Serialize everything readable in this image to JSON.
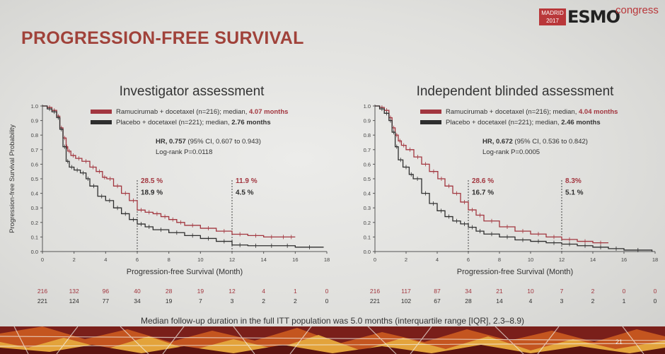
{
  "slide": {
    "title": "PROGRESSION-FREE SURVIVAL",
    "logo": {
      "city": "MADRID",
      "year": "2017",
      "brand": "ESMO",
      "suffix": "congress"
    },
    "footnote": "Median follow-up duration in the full ITT population was 5.0 months (interquartile range [IQR], 2.3–8.9)",
    "page_number": "21"
  },
  "chart_data": [
    {
      "type": "line",
      "title": "Investigator assessment",
      "xlabel": "Progression-free Survival (Month)",
      "ylabel": "Progression-free Survival Probability",
      "xlim": [
        0,
        18
      ],
      "ylim": [
        0,
        1.0
      ],
      "xticks": [
        0,
        2,
        4,
        6,
        8,
        10,
        12,
        14,
        16,
        18
      ],
      "yticks": [
        0.0,
        0.1,
        0.2,
        0.3,
        0.4,
        0.5,
        0.6,
        0.7,
        0.8,
        0.9,
        1.0
      ],
      "grid": false,
      "legend_position": "top-right",
      "series": [
        {
          "name": "Ramucirumab + docetaxel (n=216); median,",
          "median_label": "4.07 months",
          "color": "#a2363f",
          "x": [
            0,
            0.3,
            0.6,
            0.9,
            1.1,
            1.3,
            1.5,
            1.6,
            1.8,
            2.1,
            2.5,
            3.0,
            3.4,
            3.8,
            4.07,
            4.5,
            5.0,
            5.5,
            6.0,
            6.5,
            7.0,
            7.5,
            8.0,
            8.5,
            9.0,
            10.0,
            11.0,
            12.0,
            13.0,
            14.0,
            15.0,
            15.5,
            16.0
          ],
          "y": [
            1.0,
            0.99,
            0.97,
            0.93,
            0.85,
            0.78,
            0.72,
            0.69,
            0.66,
            0.64,
            0.62,
            0.58,
            0.55,
            0.51,
            0.5,
            0.45,
            0.4,
            0.35,
            0.285,
            0.27,
            0.26,
            0.24,
            0.22,
            0.2,
            0.18,
            0.16,
            0.14,
            0.119,
            0.11,
            0.1,
            0.1,
            0.1,
            0.1
          ]
        },
        {
          "name": "Placebo + docetaxel (n=221); median,",
          "median_label": "2.76 months",
          "color": "#2e2e2e",
          "x": [
            0,
            0.3,
            0.6,
            0.9,
            1.1,
            1.3,
            1.5,
            1.7,
            2.0,
            2.4,
            2.76,
            3.0,
            3.5,
            4.0,
            4.5,
            5.0,
            5.5,
            6.0,
            6.5,
            7.0,
            8.0,
            9.0,
            10.0,
            11.0,
            12.0,
            13.0,
            14.0,
            15.0,
            16.0,
            17.8
          ],
          "y": [
            1.0,
            0.98,
            0.96,
            0.92,
            0.84,
            0.72,
            0.62,
            0.58,
            0.56,
            0.54,
            0.5,
            0.45,
            0.38,
            0.35,
            0.3,
            0.26,
            0.22,
            0.189,
            0.17,
            0.15,
            0.13,
            0.11,
            0.09,
            0.07,
            0.045,
            0.04,
            0.04,
            0.04,
            0.03,
            0.03
          ]
        }
      ],
      "stats": {
        "hr_label": "HR, 0.757",
        "hr_ci": "(95% CI, 0.607 to 0.943)",
        "logrank": "Log-rank P=0.0118"
      },
      "annotations": [
        {
          "x": 6,
          "upper": "28.5 %",
          "lower": "18.9 %"
        },
        {
          "x": 12,
          "upper": "11.9 %",
          "lower": "4.5 %"
        }
      ],
      "risk_table": {
        "ramucirumab": [
          "216",
          "132",
          "96",
          "40",
          "28",
          "19",
          "12",
          "4",
          "1",
          "0"
        ],
        "placebo": [
          "221",
          "124",
          "77",
          "34",
          "19",
          "7",
          "3",
          "2",
          "2",
          "0"
        ]
      }
    },
    {
      "type": "line",
      "title": "Independent blinded assessment",
      "xlabel": "Progression-free Survival (Month)",
      "ylabel": "",
      "xlim": [
        0,
        18
      ],
      "ylim": [
        0,
        1.0
      ],
      "xticks": [
        0,
        2,
        4,
        6,
        8,
        10,
        12,
        14,
        16,
        18
      ],
      "yticks": [
        0.0,
        0.1,
        0.2,
        0.3,
        0.4,
        0.5,
        0.6,
        0.7,
        0.8,
        0.9,
        1.0
      ],
      "grid": false,
      "legend_position": "top-right",
      "series": [
        {
          "name": "Ramucirumab + docetaxel (n=216); median,",
          "median_label": "4.04 months",
          "color": "#a2363f",
          "x": [
            0,
            0.3,
            0.6,
            0.9,
            1.1,
            1.3,
            1.5,
            1.7,
            2.0,
            2.5,
            3.0,
            3.5,
            4.04,
            4.5,
            5.0,
            5.5,
            6.0,
            6.5,
            7.0,
            8.0,
            9.0,
            10.0,
            11.0,
            12.0,
            13.0,
            14.0,
            15.0
          ],
          "y": [
            1.0,
            0.99,
            0.97,
            0.92,
            0.85,
            0.8,
            0.76,
            0.73,
            0.7,
            0.65,
            0.6,
            0.55,
            0.5,
            0.45,
            0.4,
            0.34,
            0.286,
            0.25,
            0.21,
            0.17,
            0.14,
            0.12,
            0.1,
            0.083,
            0.07,
            0.06,
            0.06
          ]
        },
        {
          "name": "Placebo + docetaxel (n=221); median,",
          "median_label": "2.46 months",
          "color": "#2e2e2e",
          "x": [
            0,
            0.3,
            0.6,
            0.9,
            1.1,
            1.3,
            1.5,
            1.8,
            2.2,
            2.46,
            3.0,
            3.5,
            4.0,
            4.5,
            5.0,
            5.5,
            6.0,
            6.5,
            7.0,
            8.0,
            9.0,
            10.0,
            11.0,
            12.0,
            13.0,
            14.0,
            15.0,
            16.0,
            17.8
          ],
          "y": [
            1.0,
            0.98,
            0.95,
            0.9,
            0.82,
            0.72,
            0.63,
            0.58,
            0.53,
            0.5,
            0.4,
            0.33,
            0.28,
            0.24,
            0.21,
            0.19,
            0.167,
            0.14,
            0.12,
            0.1,
            0.08,
            0.07,
            0.06,
            0.051,
            0.04,
            0.03,
            0.02,
            0.01,
            0.0
          ]
        }
      ],
      "stats": {
        "hr_label": "HR, 0.672",
        "hr_ci": "(95% CI, 0.536 to 0.842)",
        "logrank": "Log-rank P=0.0005"
      },
      "annotations": [
        {
          "x": 6,
          "upper": "28.6 %",
          "lower": "16.7 %"
        },
        {
          "x": 12,
          "upper": "8.3%",
          "lower": "5.1 %"
        }
      ],
      "risk_table": {
        "ramucirumab": [
          "216",
          "117",
          "87",
          "34",
          "21",
          "10",
          "7",
          "2",
          "0",
          "0"
        ],
        "placebo": [
          "221",
          "102",
          "67",
          "28",
          "14",
          "4",
          "3",
          "2",
          "1",
          "0"
        ]
      }
    }
  ]
}
